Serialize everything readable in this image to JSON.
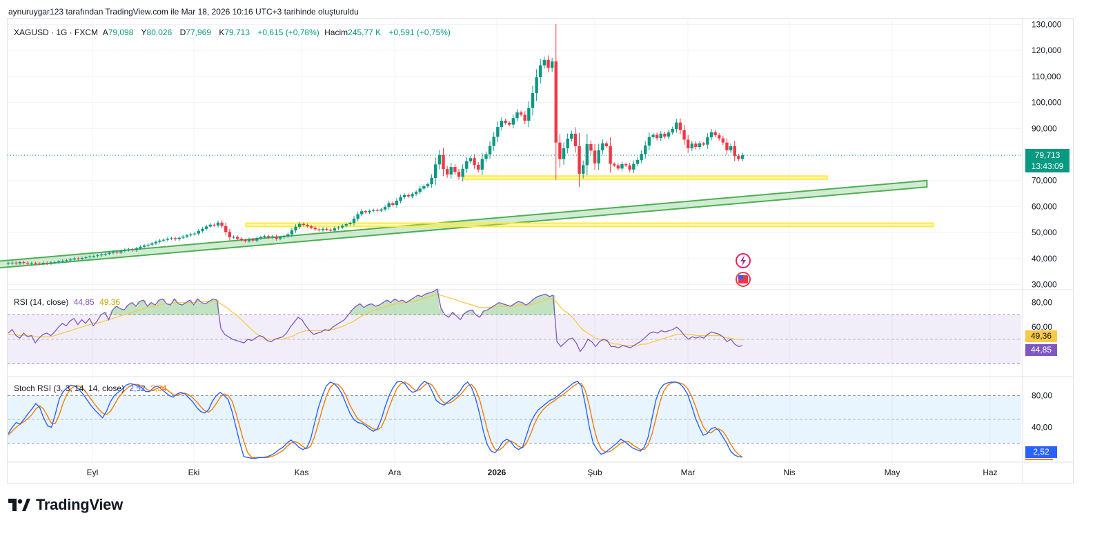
{
  "attribution": "aynuruygar123 tarafından TradingView.com ile Mar 18, 2026 10:16 UTC+3 tarihinde oluşturuldu",
  "branding": {
    "logo_icon": "tradingview-logo-icon",
    "name": "TradingView"
  },
  "colors": {
    "up": "#089981",
    "down": "#f23645",
    "rsi": "#7e57c2",
    "rsi_ma": "#f7c948",
    "stoch_k": "#2962ff",
    "stoch_d": "#f57c00",
    "zone": "#ffeb3b",
    "channel": "#4caf50"
  },
  "legend": {
    "symbol": "XAGUSD · 1G · FXCM",
    "open_label": "A",
    "open": "79,098",
    "high_label": "Y",
    "high": "80,026",
    "low_label": "D",
    "low": "77,969",
    "close_label": "K",
    "close": "79,713",
    "change": "+0,615 (+0,78%)",
    "volume_label": "Hacim",
    "volume": "245,77 K",
    "volume_change": "+0,591 (+0,75%)"
  },
  "price_tag": {
    "price": "79,713",
    "countdown": "13:43:09"
  },
  "rsi": {
    "label": "RSI (14, close)",
    "value": "44,85",
    "ma": "49,36"
  },
  "stoch": {
    "label": "Stoch RSI (3, 3, 14, 14, close)",
    "k": "2,52",
    "d": "2,34"
  },
  "chart_data": [
    {
      "type": "candlestick",
      "title": "XAGUSD · 1G · FXCM",
      "x_ticks": [
        "Eyl",
        "Eki",
        "Kas",
        "Ara",
        "2026",
        "Şub",
        "Mar",
        "Nis",
        "May",
        "Haz"
      ],
      "y_ticks": [
        "30,000",
        "40,000",
        "50,000",
        "60,000",
        "70,000",
        "80,000",
        "90,000",
        "100,000",
        "110,000",
        "120,000",
        "130,000"
      ],
      "ylim": [
        28,
        132
      ],
      "last_price": 79.713,
      "closes": [
        38.2,
        38.4,
        38.1,
        38.6,
        38.3,
        38.0,
        38.2,
        38.0,
        37.9,
        38.3,
        38.1,
        38.5,
        38.6,
        38.9,
        39.1,
        39.3,
        39.6,
        40.0,
        39.8,
        40.2,
        40.5,
        40.8,
        41.0,
        41.2,
        41.5,
        41.8,
        42.2,
        42.6,
        42.3,
        42.9,
        43.3,
        43.5,
        43.2,
        43.9,
        44.5,
        45.0,
        45.3,
        45.8,
        46.4,
        46.9,
        47.2,
        47.6,
        47.8,
        47.4,
        48.0,
        48.4,
        48.9,
        49.3,
        49.6,
        50.6,
        51.4,
        52.3,
        53.0,
        52.7,
        53.8,
        52.5,
        50.2,
        48.2,
        48.3,
        47.6,
        47.1,
        46.7,
        47.4,
        46.9,
        47.8,
        48.2,
        48.6,
        48.1,
        48.5,
        47.6,
        48.2,
        48.6,
        49.3,
        50.8,
        52.2,
        53.3,
        52.9,
        52.4,
        51.8,
        51.2,
        50.9,
        51.4,
        51.1,
        50.7,
        51.6,
        51.9,
        52.6,
        53.2,
        53.7,
        55.3,
        57.0,
        58.2,
        57.8,
        58.3,
        58.6,
        58.4,
        58.9,
        59.8,
        61.3,
        60.6,
        62.2,
        63.6,
        64.4,
        63.9,
        64.8,
        65.6,
        66.9,
        67.8,
        68.6,
        71.0,
        76.2,
        79.8,
        74.4,
        72.3,
        75.2,
        73.3,
        71.4,
        74.5,
        77.4,
        78.6,
        76.0,
        74.2,
        78.3,
        80.1,
        83.3,
        86.8,
        90.6,
        93.0,
        92.2,
        91.5,
        94.0,
        96.2,
        95.3,
        93.0,
        97.9,
        103.6,
        109.7,
        114.3,
        116.4,
        113.3,
        115.8,
        84.6,
        78.2,
        82.4,
        86.1,
        88.0,
        83.2,
        72.6,
        75.9,
        84.0,
        81.5,
        76.6,
        81.6,
        84.3,
        83.2,
        76.4,
        75.8,
        74.6,
        76.3,
        75.8,
        74.2,
        76.4,
        77.9,
        80.2,
        83.4,
        86.7,
        87.6,
        86.3,
        88.0,
        86.9,
        88.5,
        89.8,
        92.3,
        89.4,
        85.7,
        82.4,
        84.2,
        82.9,
        84.3,
        83.8,
        86.6,
        88.6,
        87.4,
        86.2,
        84.6,
        81.6,
        83.2,
        79.4,
        78.3,
        79.713
      ],
      "horizontal_zones": [
        {
          "name": "support-zone-upper",
          "from_date": "2025-12-22",
          "to_date": "2026-04-12",
          "price_range": [
            70.5,
            71.7
          ]
        },
        {
          "name": "support-zone-lower",
          "from_date": "2025-10-16",
          "to_date": "2026-05-14",
          "price_range": [
            52.3,
            53.6
          ]
        }
      ],
      "trend_channel": {
        "start": {
          "date": "2025-08-01",
          "price_range": [
            36.0,
            38.6
          ]
        },
        "end": {
          "date": "2026-05-12",
          "price_range": [
            67.5,
            70.0
          ]
        }
      }
    },
    {
      "type": "line",
      "title": "RSI (14, close)",
      "y_ticks": [
        "80,00",
        "60,00"
      ],
      "bands": [
        30,
        70
      ],
      "ylim": [
        20,
        90
      ],
      "series": [
        {
          "name": "RSI",
          "values": [
            55,
            58,
            53,
            51,
            55,
            52,
            53,
            47,
            51,
            54,
            55,
            53,
            56,
            60,
            63,
            61,
            65,
            67,
            62,
            66,
            63,
            67,
            61,
            65,
            70,
            72,
            66,
            74,
            77,
            75,
            74,
            78,
            80,
            77,
            81,
            82,
            77,
            80,
            78,
            82,
            83,
            79,
            78,
            83,
            79,
            78,
            80,
            82,
            78,
            83,
            80,
            79,
            81,
            83,
            82,
            59,
            54,
            52,
            50,
            49,
            48,
            47,
            50,
            49,
            51,
            53,
            52,
            49,
            48,
            50,
            51,
            52,
            55,
            60,
            64,
            68,
            66,
            61,
            57,
            54,
            55,
            56,
            58,
            57,
            60,
            62,
            64,
            66,
            70,
            74,
            77,
            79,
            76,
            78,
            79,
            77,
            78,
            80,
            82,
            80,
            83,
            81,
            82,
            80,
            82,
            84,
            86,
            85,
            87,
            88,
            89,
            91,
            75,
            70,
            68,
            72,
            69,
            66,
            71,
            73,
            74,
            70,
            68,
            73,
            74,
            76,
            78,
            80,
            79,
            78,
            77,
            79,
            81,
            80,
            78,
            80,
            83,
            85,
            86,
            87,
            85,
            86,
            48,
            44,
            47,
            50,
            51,
            47,
            40,
            44,
            50,
            48,
            44,
            48,
            50,
            49,
            44,
            44,
            43,
            45,
            44,
            43,
            45,
            47,
            49,
            52,
            55,
            56,
            55,
            57,
            56,
            57,
            58,
            60,
            57,
            53,
            50,
            52,
            51,
            52,
            51,
            54,
            56,
            55,
            54,
            52,
            48,
            50,
            46,
            44,
            44.85
          ]
        },
        {
          "name": "RSI MA",
          "values": [
            54,
            54,
            54,
            53,
            53,
            53,
            53,
            52,
            52,
            52,
            52,
            52,
            53,
            54,
            55,
            56,
            57,
            58,
            59,
            60,
            61,
            62,
            63,
            63,
            64,
            65,
            66,
            67,
            68,
            69,
            70,
            71,
            72,
            73,
            74,
            75,
            76,
            77,
            77,
            78,
            79,
            79,
            79,
            80,
            80,
            80,
            80,
            80,
            80,
            81,
            81,
            81,
            81,
            81,
            81,
            79,
            77,
            75,
            72,
            70,
            67,
            64,
            61,
            58,
            55,
            53,
            51,
            50,
            50,
            50,
            50,
            50,
            51,
            52,
            53,
            55,
            56,
            57,
            57,
            57,
            57,
            57,
            57,
            58,
            58,
            59,
            60,
            61,
            63,
            64,
            66,
            68,
            70,
            71,
            73,
            74,
            75,
            76,
            77,
            78,
            79,
            79,
            80,
            80,
            81,
            81,
            82,
            83,
            84,
            85,
            86,
            87,
            86,
            85,
            84,
            83,
            82,
            81,
            80,
            79,
            78,
            77,
            76,
            76,
            76,
            76,
            77,
            77,
            77,
            77,
            77,
            77,
            78,
            78,
            78,
            78,
            79,
            80,
            81,
            82,
            83,
            83,
            80,
            76,
            73,
            71,
            68,
            64,
            60,
            57,
            55,
            53,
            51,
            50,
            49,
            48,
            47,
            46,
            46,
            45,
            45,
            45,
            45,
            45,
            46,
            46,
            47,
            48,
            49,
            50,
            51,
            52,
            53,
            54,
            54,
            54,
            54,
            54,
            53,
            53,
            53,
            53,
            53,
            53,
            53,
            52,
            51,
            51,
            50,
            50,
            49.36
          ]
        }
      ]
    },
    {
      "type": "line",
      "title": "Stoch RSI (3, 3, 14, 14, close)",
      "y_ticks": [
        "80,00",
        "40,00"
      ],
      "bands": [
        20,
        50,
        80
      ],
      "ylim": [
        -3,
        103
      ],
      "series": [
        {
          "name": "K",
          "values": [
            32,
            40,
            46,
            44,
            50,
            57,
            63,
            70,
            65,
            52,
            42,
            40,
            57,
            76,
            85,
            90,
            93,
            92,
            88,
            82,
            75,
            68,
            62,
            57,
            52,
            60,
            72,
            80,
            84,
            88,
            93,
            95,
            94,
            92,
            90,
            85,
            85,
            90,
            92,
            88,
            84,
            80,
            78,
            82,
            84,
            82,
            77,
            72,
            65,
            60,
            58,
            62,
            73,
            80,
            84,
            80,
            75,
            60,
            40,
            20,
            3,
            2,
            1,
            1,
            2,
            2,
            3,
            5,
            8,
            12,
            15,
            20,
            24,
            20,
            15,
            12,
            14,
            25,
            45,
            65,
            80,
            92,
            97,
            95,
            90,
            82,
            70,
            58,
            50,
            46,
            45,
            42,
            38,
            35,
            38,
            50,
            66,
            80,
            90,
            97,
            98,
            95,
            88,
            84,
            86,
            93,
            98,
            95,
            85,
            74,
            70,
            68,
            72,
            76,
            80,
            85,
            93,
            97,
            90,
            77,
            58,
            35,
            18,
            10,
            8,
            14,
            22,
            25,
            22,
            15,
            12,
            15,
            30,
            45,
            55,
            62,
            66,
            70,
            74,
            76,
            80,
            84,
            88,
            92,
            96,
            98,
            92,
            68,
            40,
            20,
            12,
            6,
            8,
            12,
            16,
            20,
            25,
            22,
            18,
            14,
            12,
            10,
            15,
            28,
            52,
            75,
            88,
            94,
            96,
            97,
            97,
            95,
            90,
            82,
            68,
            52,
            40,
            30,
            32,
            38,
            40,
            36,
            28,
            20,
            10,
            5,
            3,
            2.52
          ]
        },
        {
          "name": "D",
          "values": [
            30,
            35,
            40,
            44,
            47,
            51,
            56,
            63,
            67,
            63,
            54,
            45,
            45,
            56,
            71,
            82,
            89,
            92,
            92,
            89,
            83,
            76,
            69,
            63,
            58,
            56,
            60,
            68,
            77,
            83,
            88,
            92,
            94,
            94,
            92,
            89,
            86,
            87,
            89,
            91,
            89,
            85,
            81,
            80,
            82,
            83,
            81,
            77,
            72,
            66,
            61,
            59,
            63,
            70,
            78,
            82,
            80,
            73,
            58,
            40,
            22,
            8,
            2,
            2,
            2,
            2,
            2,
            3,
            5,
            8,
            11,
            16,
            20,
            22,
            20,
            16,
            13,
            16,
            28,
            45,
            63,
            79,
            90,
            95,
            94,
            89,
            80,
            68,
            59,
            51,
            47,
            44,
            41,
            38,
            37,
            40,
            51,
            65,
            78,
            89,
            95,
            97,
            94,
            89,
            86,
            88,
            93,
            96,
            93,
            85,
            76,
            71,
            70,
            72,
            76,
            80,
            86,
            92,
            94,
            88,
            76,
            57,
            37,
            21,
            12,
            11,
            15,
            21,
            23,
            20,
            16,
            14,
            20,
            31,
            44,
            54,
            61,
            66,
            70,
            73,
            77,
            80,
            84,
            88,
            92,
            95,
            95,
            86,
            67,
            43,
            24,
            13,
            9,
            9,
            12,
            16,
            20,
            22,
            22,
            18,
            15,
            12,
            12,
            18,
            32,
            52,
            72,
            86,
            93,
            96,
            97,
            96,
            94,
            89,
            80,
            67,
            53,
            41,
            34,
            33,
            37,
            38,
            35,
            28,
            19,
            11,
            6,
            2.34
          ]
        }
      ]
    }
  ]
}
